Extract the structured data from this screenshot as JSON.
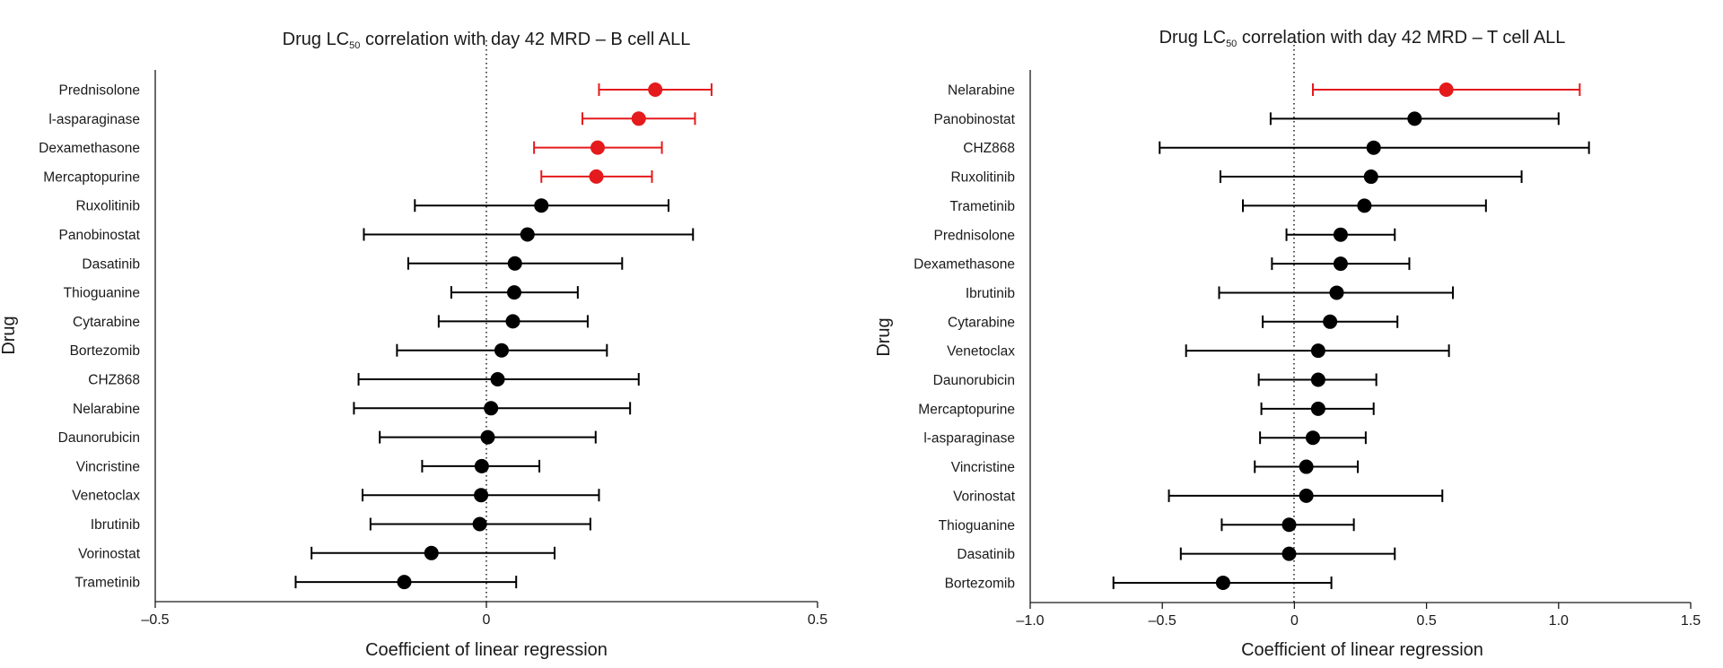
{
  "chart_data": [
    {
      "type": "forest",
      "title_prefix": "Drug LC",
      "title_sub": "50",
      "title_suffix": " correlation with day 42 MRD – B cell ALL",
      "xlabel": "Coefficient of linear regression",
      "ylabel": "Drug",
      "xlim": [
        -0.5,
        0.5
      ],
      "xticks": [
        -0.5,
        0,
        0.5
      ],
      "xtick_labels": [
        "–0.5",
        "0",
        "0.5"
      ],
      "reference_line": 0,
      "significant_color": "#e41a1c",
      "default_color": "#000000",
      "categories": [
        "Prednisolone",
        "L-asparaginase",
        "Dexamethasone",
        "Mercaptopurine",
        "Ruxolitinib",
        "Panobinostat",
        "Dasatinib",
        "Thioguanine",
        "Cytarabine",
        "Bortezomib",
        "CHZ868",
        "Nelarabine",
        "Daunorubicin",
        "Vincristine",
        "Venetoclax",
        "Ibrutinib",
        "Vorinostat",
        "Trametinib"
      ],
      "category_labels": [
        "Prednisolone",
        "l-asparaginase",
        "Dexamethasone",
        "Mercaptopurine",
        "Ruxolitinib",
        "Panobinostat",
        "Dasatinib",
        "Thioguanine",
        "Cytarabine",
        "Bortezomib",
        "CHZ868",
        "Nelarabine",
        "Daunorubicin",
        "Vincristine",
        "Venetoclax",
        "Ibrutinib",
        "Vorinostat",
        "Trametinib"
      ],
      "estimate": [
        0.255,
        0.23,
        0.168,
        0.166,
        0.083,
        0.062,
        0.043,
        0.042,
        0.04,
        0.023,
        0.017,
        0.007,
        0.002,
        -0.007,
        -0.008,
        -0.01,
        -0.083,
        -0.124
      ],
      "lower": [
        0.17,
        0.145,
        0.072,
        0.083,
        -0.108,
        -0.185,
        -0.118,
        -0.053,
        -0.072,
        -0.135,
        -0.193,
        -0.2,
        -0.161,
        -0.097,
        -0.187,
        -0.175,
        -0.264,
        -0.288
      ],
      "upper": [
        0.34,
        0.315,
        0.265,
        0.25,
        0.275,
        0.312,
        0.205,
        0.138,
        0.153,
        0.182,
        0.23,
        0.217,
        0.165,
        0.08,
        0.17,
        0.157,
        0.103,
        0.045
      ],
      "significant": [
        true,
        true,
        true,
        true,
        false,
        false,
        false,
        false,
        false,
        false,
        false,
        false,
        false,
        false,
        false,
        false,
        false,
        false
      ]
    },
    {
      "type": "forest",
      "title_prefix": "Drug LC",
      "title_sub": "50",
      "title_suffix": " correlation with day 42 MRD – T cell ALL",
      "xlabel": "Coefficient of linear regression",
      "ylabel": "Drug",
      "xlim": [
        -1.0,
        1.5
      ],
      "xticks": [
        -1.0,
        -0.5,
        0,
        0.5,
        1.0,
        1.5
      ],
      "xtick_labels": [
        "–1.0",
        "–0.5",
        "0",
        "0.5",
        "1.0",
        "1.5"
      ],
      "reference_line": 0,
      "significant_color": "#e41a1c",
      "default_color": "#000000",
      "categories": [
        "Nelarabine",
        "Panobinostat",
        "CHZ868",
        "Ruxolitinib",
        "Trametinib",
        "Prednisolone",
        "Dexamethasone",
        "Ibrutinib",
        "Cytarabine",
        "Venetoclax",
        "Daunorubicin",
        "Mercaptopurine",
        "L-asparaginase",
        "Vincristine",
        "Vorinostat",
        "Thioguanine",
        "Dasatinib",
        "Bortezomib"
      ],
      "category_labels": [
        "Nelarabine",
        "Panobinostat",
        "CHZ868",
        "Ruxolitinib",
        "Trametinib",
        "Prednisolone",
        "Dexamethasone",
        "Ibrutinib",
        "Cytarabine",
        "Venetoclax",
        "Daunorubicin",
        "Mercaptopurine",
        "l-asparaginase",
        "Vincristine",
        "Vorinostat",
        "Thioguanine",
        "Dasatinib",
        "Bortezomib"
      ],
      "estimate": [
        0.575,
        0.455,
        0.3,
        0.29,
        0.265,
        0.175,
        0.175,
        0.16,
        0.135,
        0.09,
        0.09,
        0.09,
        0.07,
        0.045,
        0.045,
        -0.02,
        -0.02,
        -0.27
      ],
      "lower": [
        0.07,
        -0.09,
        -0.51,
        -0.28,
        -0.195,
        -0.03,
        -0.085,
        -0.285,
        -0.12,
        -0.41,
        -0.135,
        -0.125,
        -0.13,
        -0.15,
        -0.475,
        -0.275,
        -0.43,
        -0.685
      ],
      "upper": [
        1.08,
        1.0,
        1.115,
        0.86,
        0.725,
        0.38,
        0.435,
        0.6,
        0.39,
        0.585,
        0.31,
        0.3,
        0.27,
        0.24,
        0.56,
        0.225,
        0.38,
        0.14
      ],
      "significant": [
        true,
        false,
        false,
        false,
        false,
        false,
        false,
        false,
        false,
        false,
        false,
        false,
        false,
        false,
        false,
        false,
        false,
        false
      ]
    }
  ]
}
